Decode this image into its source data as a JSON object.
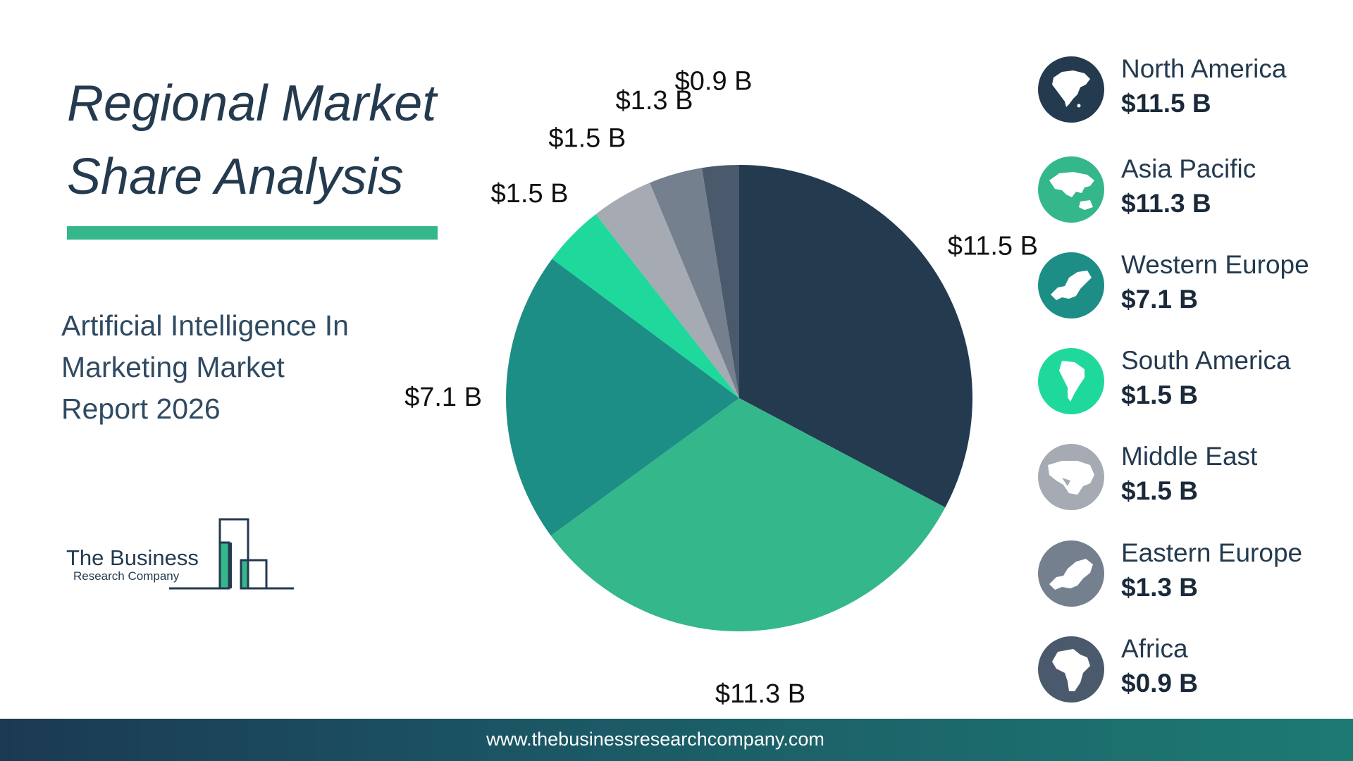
{
  "title_line1": "Regional Market",
  "title_line2": "Share Analysis",
  "subtitle_line1": "Artificial Intelligence In",
  "subtitle_line2": "Marketing Market",
  "subtitle_line3": "Report 2026",
  "logo": {
    "line1": "The Business",
    "line2": "Research Company"
  },
  "footer_url": "www.thebusinessresearchcompany.com",
  "colors": {
    "north_america": "#243a4f",
    "asia_pacific": "#34b78b",
    "western_europe": "#1c8e86",
    "south_america": "#1fd89c",
    "middle_east": "#a5aab3",
    "eastern_europe": "#74808e",
    "africa": "#4a5a6c",
    "accent": "#34b78b"
  },
  "chart_data": {
    "type": "pie",
    "categories": [
      "North America",
      "Asia Pacific",
      "Western Europe",
      "South America",
      "Middle East",
      "Eastern Europe",
      "Africa"
    ],
    "values": [
      11.5,
      11.3,
      7.1,
      1.5,
      1.5,
      1.3,
      0.9
    ],
    "labels": [
      "$11.5 B",
      "$11.3 B",
      "$7.1 B",
      "$1.5 B",
      "$1.5 B",
      "$1.3 B",
      "$0.9 B"
    ],
    "colors": [
      "#243a4f",
      "#34b78b",
      "#1c8e86",
      "#1fd89c",
      "#a5aab3",
      "#74808e",
      "#4a5a6c"
    ],
    "direction": "clockwise from 12 o'clock"
  },
  "legend": [
    {
      "name": "North America",
      "value": "$11.5 B",
      "icon": "north-america-map-icon",
      "color": "#243a4f"
    },
    {
      "name": "Asia Pacific",
      "value": "$11.3 B",
      "icon": "asia-pacific-map-icon",
      "color": "#34b78b"
    },
    {
      "name": "Western Europe",
      "value": "$7.1 B",
      "icon": "western-europe-map-icon",
      "color": "#1c8e86"
    },
    {
      "name": "South America",
      "value": "$1.5 B",
      "icon": "south-america-map-icon",
      "color": "#1fd89c"
    },
    {
      "name": "Middle East",
      "value": "$1.5 B",
      "icon": "middle-east-map-icon",
      "color": "#a5aab3"
    },
    {
      "name": "Eastern Europe",
      "value": "$1.3 B",
      "icon": "eastern-europe-map-icon",
      "color": "#74808e"
    },
    {
      "name": "Africa",
      "value": "$0.9 B",
      "icon": "africa-map-icon",
      "color": "#4a5a6c"
    }
  ]
}
